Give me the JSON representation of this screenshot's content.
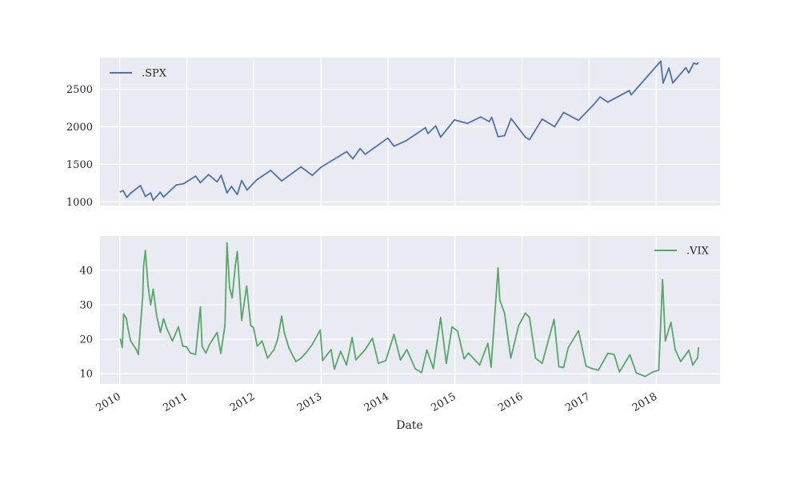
{
  "chart_data": [
    {
      "type": "line",
      "title": "",
      "xlabel": "",
      "ylabel": "",
      "ylim": [
        950,
        2920
      ],
      "yticks": [
        1000,
        1500,
        2000,
        2500
      ],
      "grid": true,
      "legend_position": "top-left",
      "series": [
        {
          "name": ".SPX",
          "color": "#4c72b0",
          "points": [
            [
              "2010-01-04",
              1133
            ],
            [
              "2010-01-19",
              1150
            ],
            [
              "2010-02-08",
              1060
            ],
            [
              "2010-03-01",
              1115
            ],
            [
              "2010-04-23",
              1217
            ],
            [
              "2010-05-20",
              1072
            ],
            [
              "2010-06-18",
              1118
            ],
            [
              "2010-07-02",
              1022
            ],
            [
              "2010-08-09",
              1127
            ],
            [
              "2010-08-27",
              1064
            ],
            [
              "2010-10-01",
              1146
            ],
            [
              "2010-11-05",
              1225
            ],
            [
              "2010-12-15",
              1242
            ],
            [
              "2011-02-18",
              1343
            ],
            [
              "2011-03-16",
              1256
            ],
            [
              "2011-04-29",
              1363
            ],
            [
              "2011-06-15",
              1266
            ],
            [
              "2011-07-07",
              1353
            ],
            [
              "2011-08-08",
              1119
            ],
            [
              "2011-09-01",
              1204
            ],
            [
              "2011-10-03",
              1099
            ],
            [
              "2011-10-27",
              1284
            ],
            [
              "2011-11-25",
              1158
            ],
            [
              "2012-01-17",
              1293
            ],
            [
              "2012-04-02",
              1419
            ],
            [
              "2012-06-01",
              1278
            ],
            [
              "2012-09-14",
              1465
            ],
            [
              "2012-11-15",
              1353
            ],
            [
              "2013-01-02",
              1462
            ],
            [
              "2013-05-21",
              1669
            ],
            [
              "2013-06-24",
              1573
            ],
            [
              "2013-08-02",
              1709
            ],
            [
              "2013-08-30",
              1633
            ],
            [
              "2013-12-31",
              1848
            ],
            [
              "2014-02-03",
              1741
            ],
            [
              "2014-04-11",
              1815
            ],
            [
              "2014-07-24",
              1987
            ],
            [
              "2014-08-07",
              1909
            ],
            [
              "2014-09-18",
              2011
            ],
            [
              "2014-10-15",
              1862
            ],
            [
              "2014-12-29",
              2090
            ],
            [
              "2015-03-10",
              2044
            ],
            [
              "2015-05-21",
              2130
            ],
            [
              "2015-07-07",
              2068
            ],
            [
              "2015-07-20",
              2128
            ],
            [
              "2015-08-24",
              1867
            ],
            [
              "2015-09-28",
              1881
            ],
            [
              "2015-11-03",
              2109
            ],
            [
              "2016-01-20",
              1859
            ],
            [
              "2016-02-11",
              1829
            ],
            [
              "2016-04-20",
              2102
            ],
            [
              "2016-06-27",
              2000
            ],
            [
              "2016-08-15",
              2190
            ],
            [
              "2016-11-04",
              2085
            ],
            [
              "2017-01-26",
              2296
            ],
            [
              "2017-03-01",
              2395
            ],
            [
              "2017-04-13",
              2328
            ],
            [
              "2017-08-07",
              2480
            ],
            [
              "2017-08-18",
              2425
            ],
            [
              "2018-01-26",
              2872
            ],
            [
              "2018-02-08",
              2581
            ],
            [
              "2018-03-12",
              2783
            ],
            [
              "2018-04-02",
              2582
            ],
            [
              "2018-06-12",
              2786
            ],
            [
              "2018-06-28",
              2716
            ],
            [
              "2018-07-25",
              2846
            ],
            [
              "2018-08-10",
              2833
            ],
            [
              "2018-08-17",
              2850
            ]
          ]
        }
      ]
    },
    {
      "type": "line",
      "title": "",
      "xlabel": "Date",
      "ylabel": "",
      "ylim": [
        7,
        50
      ],
      "yticks": [
        10,
        20,
        30,
        40
      ],
      "xlim": [
        "2009-09-15",
        "2018-12-15"
      ],
      "xticks": [
        "2010",
        "2011",
        "2012",
        "2013",
        "2014",
        "2015",
        "2016",
        "2017",
        "2018"
      ],
      "grid": true,
      "legend_position": "top-right",
      "series": [
        {
          "name": ".VIX",
          "color": "#55a868",
          "points": [
            [
              "2010-01-04",
              20.0
            ],
            [
              "2010-01-14",
              17.6
            ],
            [
              "2010-01-22",
              27.3
            ],
            [
              "2010-02-05",
              26.1
            ],
            [
              "2010-02-15",
              23.0
            ],
            [
              "2010-03-01",
              19.5
            ],
            [
              "2010-04-01",
              17.0
            ],
            [
              "2010-04-12",
              15.6
            ],
            [
              "2010-05-06",
              32.8
            ],
            [
              "2010-05-10",
              40.9
            ],
            [
              "2010-05-20",
              45.8
            ],
            [
              "2010-06-04",
              35.5
            ],
            [
              "2010-06-18",
              30.0
            ],
            [
              "2010-07-02",
              34.5
            ],
            [
              "2010-07-20",
              27.0
            ],
            [
              "2010-08-10",
              22.0
            ],
            [
              "2010-08-27",
              26.0
            ],
            [
              "2010-09-15",
              23.0
            ],
            [
              "2010-10-15",
              19.5
            ],
            [
              "2010-11-16",
              23.6
            ],
            [
              "2010-12-10",
              18.0
            ],
            [
              "2010-12-31",
              17.8
            ],
            [
              "2011-01-20",
              16.0
            ],
            [
              "2011-02-18",
              15.6
            ],
            [
              "2011-03-16",
              29.4
            ],
            [
              "2011-03-25",
              18.0
            ],
            [
              "2011-04-15",
              16.0
            ],
            [
              "2011-05-05",
              18.5
            ],
            [
              "2011-06-15",
              22.0
            ],
            [
              "2011-07-05",
              15.9
            ],
            [
              "2011-07-28",
              24.0
            ],
            [
              "2011-08-08",
              48.0
            ],
            [
              "2011-08-22",
              35.0
            ],
            [
              "2011-09-05",
              32.0
            ],
            [
              "2011-09-22",
              41.3
            ],
            [
              "2011-10-03",
              45.5
            ],
            [
              "2011-10-27",
              25.5
            ],
            [
              "2011-11-23",
              35.5
            ],
            [
              "2011-12-15",
              24.0
            ],
            [
              "2011-12-30",
              23.4
            ],
            [
              "2012-01-20",
              18.0
            ],
            [
              "2012-02-15",
              19.5
            ],
            [
              "2012-03-16",
              14.5
            ],
            [
              "2012-04-20",
              17.0
            ],
            [
              "2012-05-10",
              20.0
            ],
            [
              "2012-06-01",
              26.7
            ],
            [
              "2012-06-15",
              22.0
            ],
            [
              "2012-07-10",
              17.5
            ],
            [
              "2012-08-17",
              13.5
            ],
            [
              "2012-09-14",
              14.5
            ],
            [
              "2012-10-10",
              16.0
            ],
            [
              "2012-11-15",
              18.5
            ],
            [
              "2012-12-28",
              22.7
            ],
            [
              "2013-01-10",
              13.8
            ],
            [
              "2013-02-25",
              17.0
            ],
            [
              "2013-03-15",
              11.3
            ],
            [
              "2013-04-18",
              16.5
            ],
            [
              "2013-05-20",
              12.5
            ],
            [
              "2013-06-20",
              20.5
            ],
            [
              "2013-07-10",
              14.0
            ],
            [
              "2013-08-30",
              17.0
            ],
            [
              "2013-10-08",
              20.3
            ],
            [
              "2013-11-10",
              13.0
            ],
            [
              "2013-12-20",
              13.8
            ],
            [
              "2014-02-03",
              21.4
            ],
            [
              "2014-03-10",
              14.0
            ],
            [
              "2014-04-14",
              17.0
            ],
            [
              "2014-05-30",
              11.4
            ],
            [
              "2014-07-03",
              10.3
            ],
            [
              "2014-08-01",
              16.9
            ],
            [
              "2014-09-05",
              11.5
            ],
            [
              "2014-10-15",
              26.3
            ],
            [
              "2014-11-15",
              13.0
            ],
            [
              "2014-12-16",
              23.6
            ],
            [
              "2015-01-15",
              22.4
            ],
            [
              "2015-02-20",
              14.3
            ],
            [
              "2015-03-15",
              16.0
            ],
            [
              "2015-05-15",
              12.5
            ],
            [
              "2015-06-29",
              18.8
            ],
            [
              "2015-07-17",
              11.9
            ],
            [
              "2015-08-24",
              40.7
            ],
            [
              "2015-09-02",
              31.4
            ],
            [
              "2015-09-28",
              27.6
            ],
            [
              "2015-11-01",
              14.5
            ],
            [
              "2015-12-14",
              24.0
            ],
            [
              "2016-01-20",
              27.6
            ],
            [
              "2016-02-11",
              26.3
            ],
            [
              "2016-03-15",
              14.5
            ],
            [
              "2016-04-20",
              13.0
            ],
            [
              "2016-06-24",
              25.8
            ],
            [
              "2016-07-20",
              12.0
            ],
            [
              "2016-08-15",
              11.8
            ],
            [
              "2016-09-09",
              17.5
            ],
            [
              "2016-11-04",
              22.5
            ],
            [
              "2016-12-15",
              12.2
            ],
            [
              "2017-01-15",
              11.5
            ],
            [
              "2017-02-20",
              11.0
            ],
            [
              "2017-04-13",
              15.9
            ],
            [
              "2017-05-17",
              15.6
            ],
            [
              "2017-06-15",
              10.5
            ],
            [
              "2017-08-11",
              15.5
            ],
            [
              "2017-09-15",
              10.2
            ],
            [
              "2017-11-03",
              9.2
            ],
            [
              "2017-12-15",
              10.5
            ],
            [
              "2018-01-15",
              11.0
            ],
            [
              "2018-02-05",
              37.3
            ],
            [
              "2018-02-20",
              19.5
            ],
            [
              "2018-03-23",
              24.9
            ],
            [
              "2018-04-15",
              17.0
            ],
            [
              "2018-05-15",
              13.5
            ],
            [
              "2018-06-28",
              16.8
            ],
            [
              "2018-07-20",
              12.5
            ],
            [
              "2018-08-15",
              14.6
            ],
            [
              "2018-08-20",
              17.5
            ]
          ]
        }
      ]
    }
  ]
}
